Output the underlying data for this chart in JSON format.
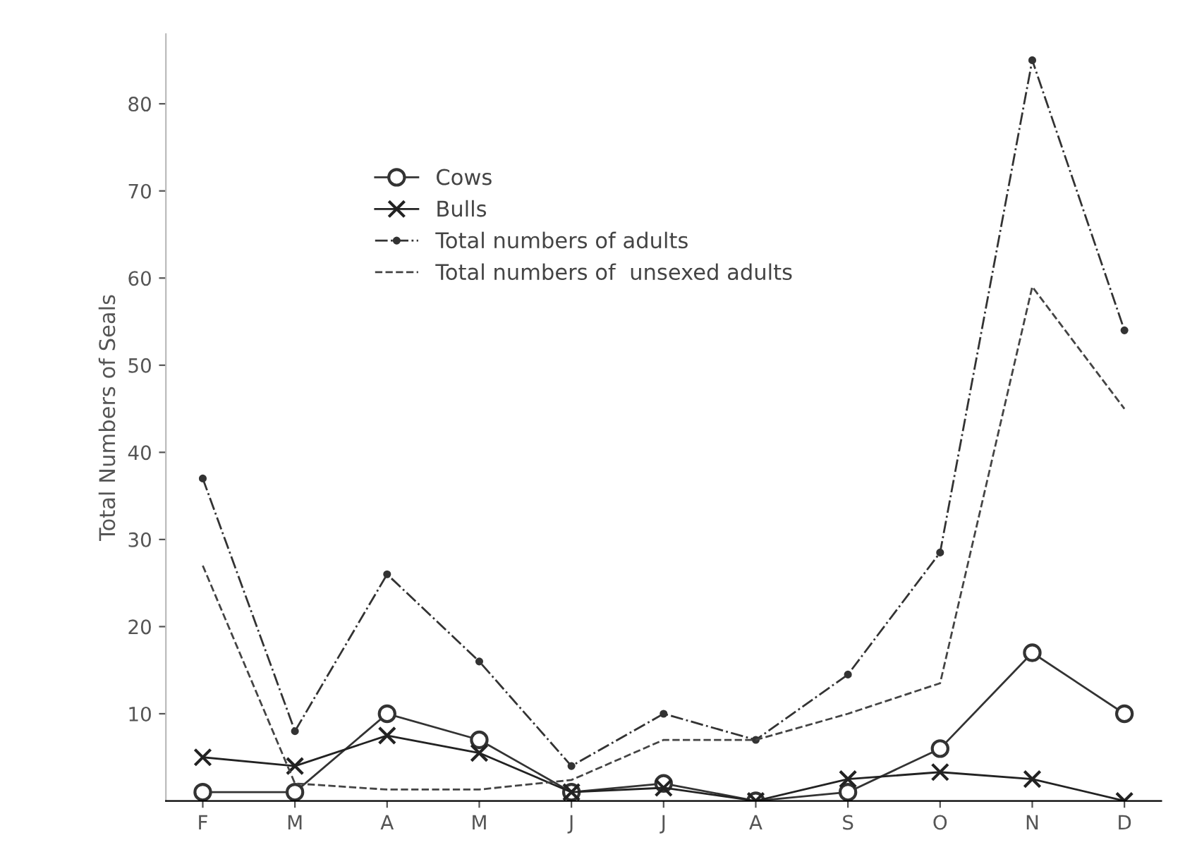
{
  "chart_data": {
    "type": "line",
    "ylabel": "Total Numbers of Seals",
    "categories": [
      "F",
      "M",
      "A",
      "M",
      "J",
      "J",
      "A",
      "S",
      "O",
      "N",
      "D"
    ],
    "series": [
      {
        "name": "Cows",
        "color": "#333333",
        "marker": "circle",
        "line_style": "solid",
        "values": [
          1,
          1,
          10,
          7,
          1,
          2,
          0,
          1,
          6,
          17,
          10
        ]
      },
      {
        "name": "Bulls",
        "color": "#222222",
        "marker": "cross",
        "line_style": "solid",
        "values": [
          5,
          4,
          7.5,
          5.5,
          1,
          1.5,
          0,
          2.5,
          3.3,
          2.5,
          0
        ]
      },
      {
        "name": "Total numbers of adults",
        "color": "#333333",
        "marker": "circle_small",
        "line_style": "dashdot",
        "values": [
          37,
          8,
          26,
          16,
          4,
          10,
          7,
          14.5,
          28.5,
          85,
          54
        ]
      },
      {
        "name": "Total numbers of  unsexed adults",
        "color": "#444444",
        "marker": "none",
        "line_style": "dashed",
        "values": [
          27,
          2,
          1.3,
          1.3,
          2.4,
          7,
          7,
          10,
          13.5,
          59,
          45
        ]
      }
    ],
    "ylim": [
      0,
      88
    ],
    "yticks": [
      10,
      20,
      30,
      40,
      50,
      60,
      70,
      80
    ],
    "grid": false,
    "legend": "top"
  }
}
